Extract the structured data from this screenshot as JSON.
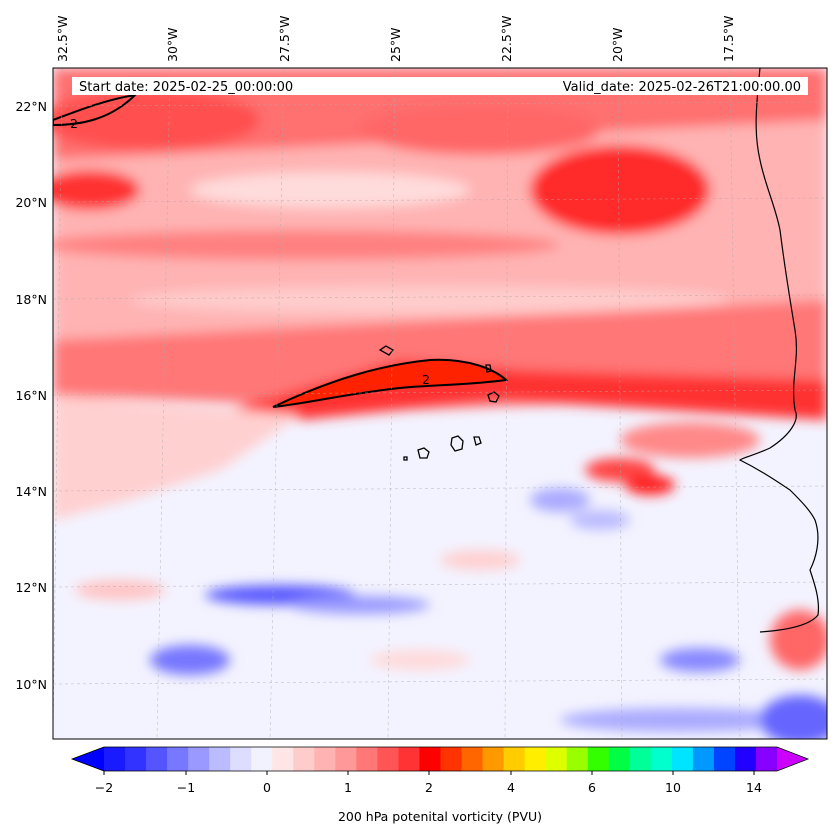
{
  "map": {
    "start_date": "Start date: 2025-02-25_00:00:00",
    "valid_date": "Valid_date: 2025-02-26T21:00:00.00",
    "longitude_labels": [
      "32.5°W",
      "30°W",
      "27.5°W",
      "25°W",
      "22.5°W",
      "20°W",
      "17.5°W"
    ],
    "latitude_labels": [
      "22°N",
      "20°N",
      "18°N",
      "16°N",
      "14°N",
      "12°N",
      "10°N"
    ],
    "contour_label": "2"
  },
  "colorbar": {
    "label": "200 hPa potenital vorticity (PVU)",
    "ticks": [
      "−2",
      "−1",
      "0",
      "1",
      "2",
      "4",
      "6",
      "10",
      "14"
    ],
    "colors": [
      "#1a1aff",
      "#3333ff",
      "#5555ff",
      "#7777ff",
      "#9999ff",
      "#bbbbff",
      "#ddddff",
      "#f2f2ff",
      "#ffe6e6",
      "#ffcccc",
      "#ffb3b3",
      "#ff9999",
      "#ff7777",
      "#ff5555",
      "#ff3333",
      "#ff0000",
      "#ff3300",
      "#ff6600",
      "#ff9900",
      "#ffcc00",
      "#ffee00",
      "#ddff00",
      "#99ff00",
      "#33ff00",
      "#00ff44",
      "#00ff99",
      "#00ffcc",
      "#00e5ff",
      "#0099ff",
      "#0044ff",
      "#2200ff",
      "#8800ff"
    ],
    "under_color": "#0000ff",
    "over_color": "#cc00ff"
  }
}
